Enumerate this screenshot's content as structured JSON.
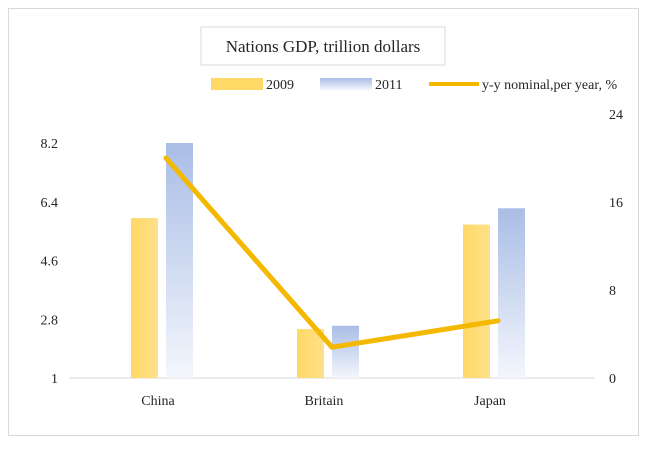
{
  "chart_data": {
    "type": "bar",
    "title": "Nations GDP, trillion dollars",
    "categories": [
      "China",
      "Britain",
      "Japan"
    ],
    "series": [
      {
        "name": "2009",
        "type": "bar",
        "axis": "left",
        "color": "#ffd966",
        "values": [
          5.9,
          2.5,
          5.7
        ]
      },
      {
        "name": "2011",
        "type": "bar",
        "axis": "left",
        "color": "#b4c7e7",
        "values": [
          8.2,
          2.6,
          6.2
        ]
      },
      {
        "name": "y-y nominal,per year, %",
        "type": "line",
        "axis": "right",
        "color": "#f4b800",
        "values": [
          20,
          2.8,
          5.2
        ]
      }
    ],
    "y_left": {
      "min": 1,
      "max": 8.2,
      "ticks": [
        "1",
        "2.8",
        "4.6",
        "6.4",
        "8.2"
      ]
    },
    "y_right": {
      "min": 0,
      "max": 24,
      "ticks": [
        "0",
        "8",
        "16",
        "24"
      ]
    },
    "legend_position": "top",
    "grid": false
  }
}
